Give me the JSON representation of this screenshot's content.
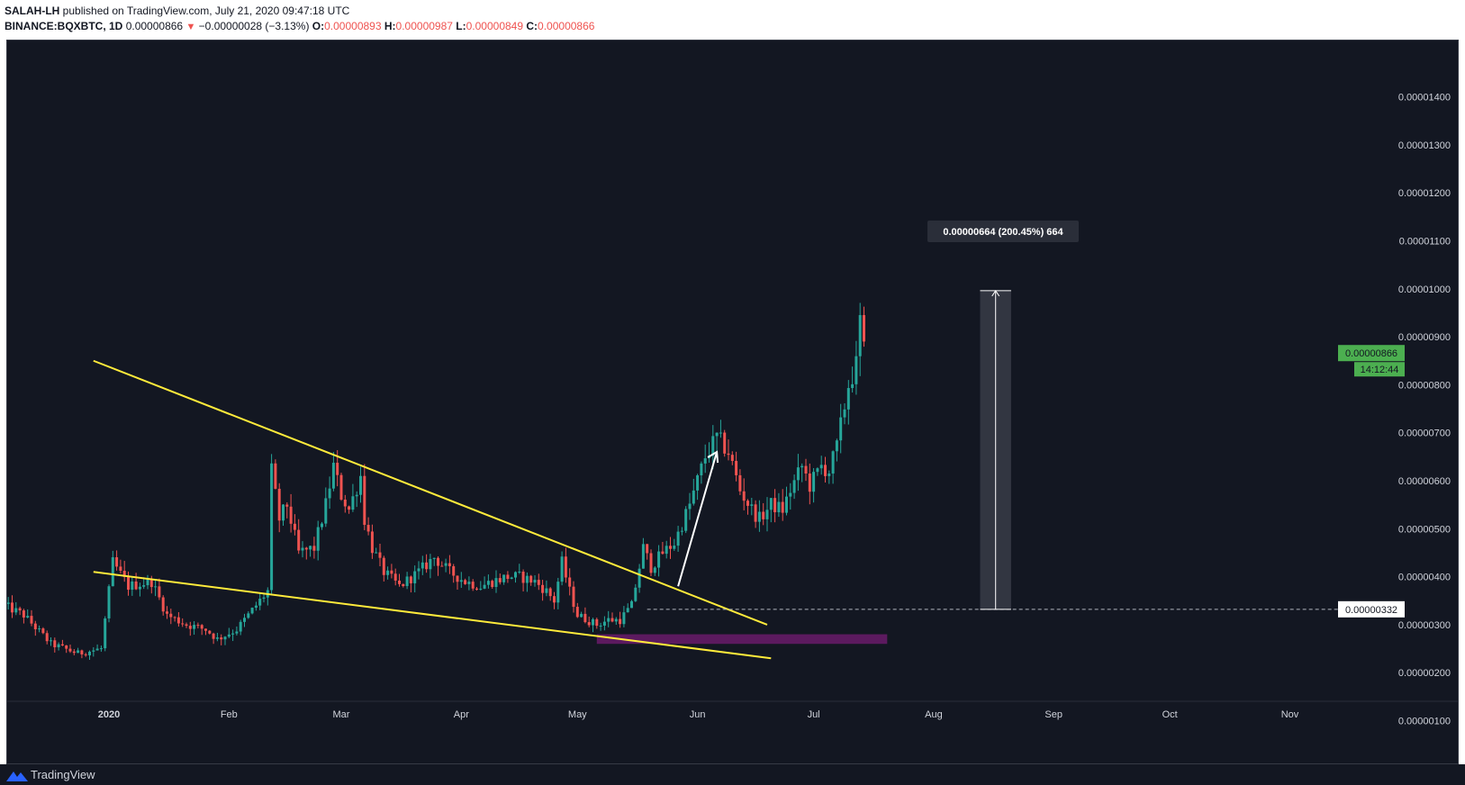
{
  "header": {
    "author": "SALAH-LH",
    "published_text": "published on TradingView.com, July 21, 2020 09:47:18 UTC",
    "symbol": "BINANCE:BQXBTC, 1D",
    "last": "0.00000866",
    "change": "−0.00000028 (−3.13%)",
    "o_label": "O:",
    "o_value": "0.00000893",
    "h_label": "H:",
    "h_value": "0.00000987",
    "l_label": "L:",
    "l_value": "0.00000849",
    "c_label": "C:",
    "c_value": "0.00000866"
  },
  "footer": {
    "brand": "TradingView",
    "logo_icon": "tradingview-logo-icon"
  },
  "chart_data": {
    "type": "candlestick",
    "theme": {
      "background": "#131722",
      "up_color": "#26a69a",
      "down_color": "#ef5350",
      "text_color": "#d1d4dc"
    },
    "y_axis": {
      "ticks": [
        "0.00001400",
        "0.00001300",
        "0.00001200",
        "0.00001100",
        "0.00001000",
        "0.00000900",
        "0.00000800",
        "0.00000700",
        "0.00000600",
        "0.00000500",
        "0.00000400",
        "0.00000300",
        "0.00000200",
        "0.00000100"
      ],
      "range": [
        4e-07,
        1.44e-05
      ]
    },
    "x_axis": {
      "labels": [
        {
          "text": "2020",
          "day": 0
        },
        {
          "text": "Feb",
          "day": 31
        },
        {
          "text": "Mar",
          "day": 60
        },
        {
          "text": "Apr",
          "day": 91
        },
        {
          "text": "May",
          "day": 121
        },
        {
          "text": "Jun",
          "day": 152
        },
        {
          "text": "Jul",
          "day": 182
        },
        {
          "text": "Aug",
          "day": 213
        },
        {
          "text": "Sep",
          "day": 244
        },
        {
          "text": "Oct",
          "day": 274
        },
        {
          "text": "Nov",
          "day": 305
        }
      ],
      "bold_first": true
    },
    "last_price": {
      "value": "0.00000866",
      "countdown": "14:12:44",
      "color": "#4caf50"
    },
    "horizontal_line": {
      "value": "0.00000332",
      "style": "dashed"
    },
    "measure": {
      "label": "0.00000664 (200.45%) 664",
      "from_day": 225,
      "to_day": 233,
      "low": 3.32e-06,
      "high": 9.96e-06
    },
    "anchor_points": [
      [
        -27,
        3.4e-06
      ],
      [
        -22,
        3.2e-06
      ],
      [
        -15,
        2.6e-06
      ],
      [
        -8,
        2.4e-06
      ],
      [
        -2,
        2.5e-06
      ],
      [
        1,
        4.3e-06
      ],
      [
        5,
        3.8e-06
      ],
      [
        11,
        3.9e-06
      ],
      [
        15,
        3.2e-06
      ],
      [
        20,
        3e-06
      ],
      [
        25,
        2.9e-06
      ],
      [
        28,
        2.7e-06
      ],
      [
        33,
        2.9e-06
      ],
      [
        37,
        3.3e-06
      ],
      [
        41,
        3.7e-06
      ],
      [
        42,
        6.2e-06
      ],
      [
        44,
        5.2e-06
      ],
      [
        46,
        5.5e-06
      ],
      [
        49,
        4.5e-06
      ],
      [
        53,
        4.6e-06
      ],
      [
        56,
        5.5e-06
      ],
      [
        58,
        6.3e-06
      ],
      [
        60,
        5.7e-06
      ],
      [
        62,
        5.4e-06
      ],
      [
        65,
        6.1e-06
      ],
      [
        66,
        5.2e-06
      ],
      [
        68,
        4.6e-06
      ],
      [
        71,
        4.1e-06
      ],
      [
        75,
        3.8e-06
      ],
      [
        80,
        4.1e-06
      ],
      [
        84,
        4.4e-06
      ],
      [
        88,
        4.1e-06
      ],
      [
        92,
        3.9e-06
      ],
      [
        96,
        3.8e-06
      ],
      [
        99,
        3.9e-06
      ],
      [
        103,
        4e-06
      ],
      [
        106,
        4e-06
      ],
      [
        110,
        3.9e-06
      ],
      [
        113,
        3.7e-06
      ],
      [
        115,
        3.5e-06
      ],
      [
        117,
        4.3e-06
      ],
      [
        119,
        3.7e-06
      ],
      [
        121,
        3.2e-06
      ],
      [
        126,
        3e-06
      ],
      [
        129,
        3.1e-06
      ],
      [
        132,
        3.1e-06
      ],
      [
        135,
        3.4e-06
      ],
      [
        138,
        4.6e-06
      ],
      [
        140,
        4.2e-06
      ],
      [
        143,
        4.5e-06
      ],
      [
        146,
        4.7e-06
      ],
      [
        150,
        5.5e-06
      ],
      [
        154,
        6.5e-06
      ],
      [
        157,
        6.9e-06
      ],
      [
        160,
        6.6e-06
      ],
      [
        163,
        5.8e-06
      ],
      [
        166,
        5.4e-06
      ],
      [
        168,
        5.2e-06
      ],
      [
        171,
        5.5e-06
      ],
      [
        174,
        5.4e-06
      ],
      [
        176,
        5.8e-06
      ],
      [
        179,
        6.3e-06
      ],
      [
        181,
        5.9e-06
      ],
      [
        184,
        6.3e-06
      ],
      [
        186,
        6.2e-06
      ],
      [
        188,
        6.7e-06
      ],
      [
        191,
        8e-06
      ],
      [
        193,
        8.4e-06
      ],
      [
        194,
        9.3e-06
      ],
      [
        195,
        8.7e-06
      ]
    ],
    "annotations": {
      "upper_trendline": {
        "color": "#ffeb3b",
        "from": [
          -4,
          8.5e-06
        ],
        "to": [
          170,
          3e-06
        ]
      },
      "lower_trendline": {
        "color": "#ffeb3b",
        "from": [
          -4,
          4.1e-06
        ],
        "to": [
          171,
          2.3e-06
        ]
      },
      "support_zone": {
        "color": "#6a1b6a",
        "from_day": 126,
        "to_day": 201,
        "low": 2.6e-06,
        "high": 2.8e-06
      },
      "arrow": {
        "color": "#ffffff",
        "from": [
          147,
          3.8e-06
        ],
        "to": [
          157,
          6.6e-06
        ]
      }
    }
  }
}
